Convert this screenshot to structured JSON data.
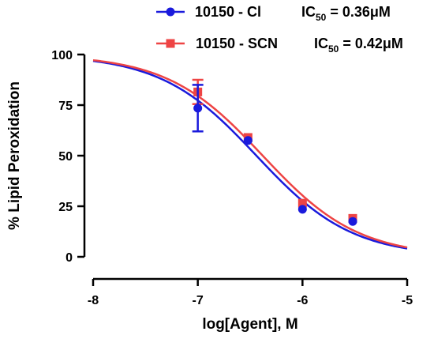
{
  "chart_data": {
    "type": "scatter",
    "xlabel": "log[Agent], M",
    "ylabel": "% Lipid Peroxidation",
    "xlim": [
      -8,
      -5
    ],
    "ylim": [
      0,
      100
    ],
    "x_ticks": [
      -8,
      -7,
      -6,
      -5
    ],
    "y_ticks": [
      0,
      25,
      50,
      75,
      100
    ],
    "x_tick_labels": [
      "-8",
      "-7",
      "-6",
      "-5"
    ],
    "y_tick_labels": [
      "0",
      "25",
      "50",
      "75",
      "100"
    ],
    "grid": false,
    "legend_position": "top-right",
    "series": [
      {
        "name": "10150 - Cl",
        "ic50_label": "IC",
        "ic50_sub": "50",
        "ic50_value": " = 0.36μM",
        "color": "#1a1adc",
        "marker": "circle",
        "x": [
          -7,
          -6.52,
          -6,
          -5.52
        ],
        "y": [
          73.5,
          57.5,
          23.5,
          17.5
        ],
        "error": [
          11.5,
          0,
          0,
          0
        ],
        "fit_ic50_log": -6.44,
        "fit_slope": 0.95
      },
      {
        "name": "10150 - SCN",
        "ic50_label": "IC",
        "ic50_sub": "50",
        "ic50_value": " = 0.42μM",
        "color": "#ee4444",
        "marker": "square",
        "x": [
          -7,
          -6.52,
          -6,
          -5.52
        ],
        "y": [
          81.5,
          59,
          26.5,
          19
        ],
        "error": [
          6,
          0,
          0,
          0
        ],
        "fit_ic50_log": -6.38,
        "fit_slope": 0.95
      }
    ],
    "fit_top": 100,
    "fit_bottom": 0
  }
}
